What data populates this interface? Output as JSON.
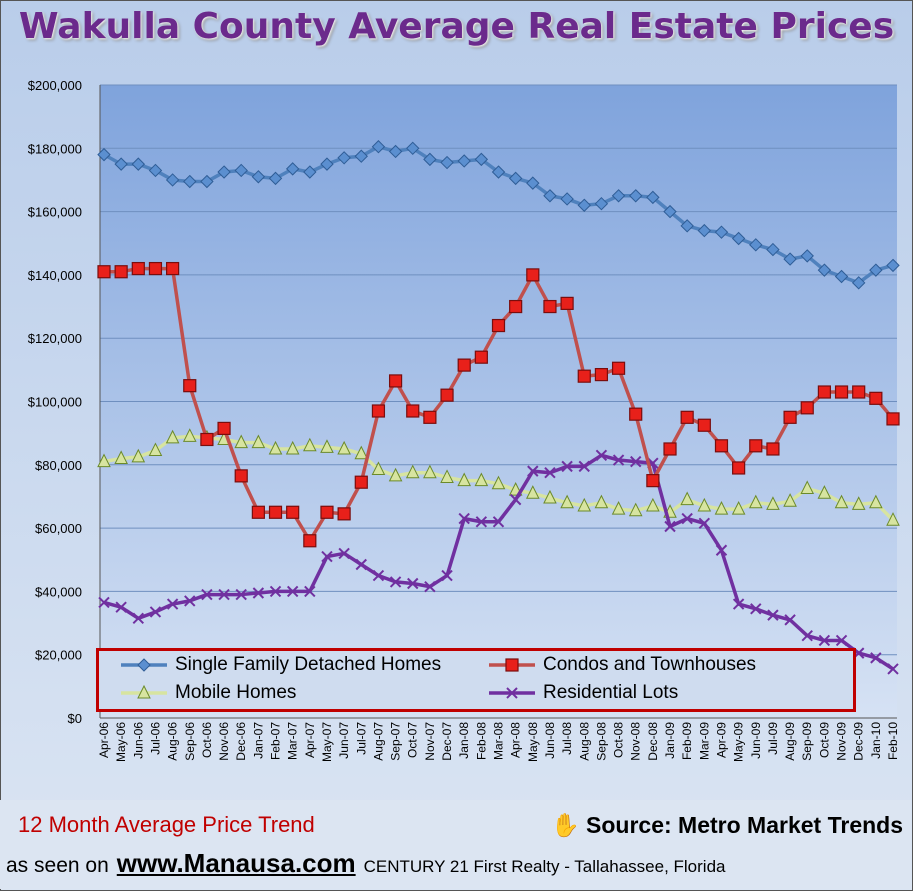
{
  "chart_data": {
    "type": "line",
    "title": "Wakulla County Average Real Estate Prices",
    "xlabel": "",
    "ylabel": "",
    "ylim": [
      0,
      200000
    ],
    "yticks": [
      "$0",
      "$20,000",
      "$40,000",
      "$60,000",
      "$80,000",
      "$100,000",
      "$120,000",
      "$140,000",
      "$160,000",
      "$180,000",
      "$200,000"
    ],
    "grid": true,
    "legend_position": "bottom",
    "categories": [
      "Apr-06",
      "May-06",
      "Jun-06",
      "Jul-06",
      "Aug-06",
      "Sep-06",
      "Oct-06",
      "Nov-06",
      "Dec-06",
      "Jan-07",
      "Feb-07",
      "Mar-07",
      "Apr-07",
      "May-07",
      "Jun-07",
      "Jul-07",
      "Aug-07",
      "Sep-07",
      "Oct-07",
      "Nov-07",
      "Dec-07",
      "Jan-08",
      "Feb-08",
      "Mar-08",
      "Apr-08",
      "May-08",
      "Jun-08",
      "Jul-08",
      "Aug-08",
      "Sep-08",
      "Oct-08",
      "Nov-08",
      "Dec-08",
      "Jan-09",
      "Feb-09",
      "Mar-09",
      "Apr-09",
      "May-09",
      "Jun-09",
      "Jul-09",
      "Aug-09",
      "Sep-09",
      "Oct-09",
      "Nov-09",
      "Dec-09",
      "Jan-10",
      "Feb-10"
    ],
    "series": [
      {
        "name": "Single Family Detached Homes",
        "color": "#4f81bd",
        "marker": "diamond",
        "values": [
          178000,
          175000,
          175000,
          173000,
          170000,
          169500,
          169500,
          172500,
          173000,
          171000,
          170500,
          173500,
          172500,
          175000,
          177000,
          177500,
          180500,
          179000,
          180000,
          176500,
          175500,
          176000,
          176500,
          172500,
          170500,
          169000,
          165000,
          164000,
          162000,
          162500,
          165000,
          165000,
          164500,
          160000,
          155500,
          154000,
          153500,
          151500,
          149500,
          148000,
          145000,
          146000,
          141500,
          139500,
          137500,
          141500,
          143000
        ]
      },
      {
        "name": "Condos and Townhouses",
        "color": "#c0504d",
        "marker": "square",
        "values": [
          141000,
          141000,
          142000,
          142000,
          142000,
          105000,
          88000,
          91500,
          76500,
          65000,
          65000,
          65000,
          56000,
          65000,
          64500,
          74500,
          97000,
          106500,
          97000,
          95000,
          102000,
          111500,
          114000,
          124000,
          130000,
          140000,
          130000,
          131000,
          108000,
          108500,
          110500,
          96000,
          75000,
          85000,
          95000,
          92500,
          86000,
          79000,
          86000,
          85000,
          95000,
          98000,
          103000,
          103000,
          103000,
          101000,
          94500
        ]
      },
      {
        "name": "Mobile Homes",
        "color": "#d7e4a0",
        "marker": "triangle",
        "values": [
          81000,
          82000,
          82500,
          84500,
          88500,
          89000,
          88500,
          88000,
          87000,
          87000,
          85000,
          85000,
          86000,
          85500,
          85000,
          83500,
          78500,
          76500,
          77500,
          77500,
          76000,
          75000,
          75000,
          74000,
          72000,
          71000,
          69500,
          68000,
          67000,
          68000,
          66000,
          65500,
          67000,
          65000,
          69000,
          67000,
          66000,
          66000,
          68000,
          67500,
          68500,
          72500,
          71000,
          68000,
          67500,
          68000,
          62500
        ]
      },
      {
        "name": "Residential Lots",
        "color": "#7030a0",
        "marker": "x",
        "values": [
          36500,
          35000,
          31500,
          33500,
          36000,
          37000,
          39000,
          39000,
          39000,
          39500,
          40000,
          40000,
          40000,
          51000,
          52000,
          48500,
          45000,
          43000,
          42500,
          41500,
          45000,
          63000,
          62000,
          62000,
          69000,
          78000,
          77500,
          79500,
          79500,
          83000,
          81500,
          81000,
          80500,
          60500,
          63000,
          61500,
          53000,
          36000,
          34500,
          32500,
          31000,
          26000,
          24500,
          24500,
          20500,
          19000,
          15500
        ]
      }
    ]
  },
  "footer": {
    "trend": "12 Month Average Price Trend",
    "source": "Source: Metro Market Trends",
    "seen_on": "as seen on",
    "website": "www.Manausa.com",
    "company": "CENTURY 21 First Realty - Tallahassee, Florida"
  }
}
